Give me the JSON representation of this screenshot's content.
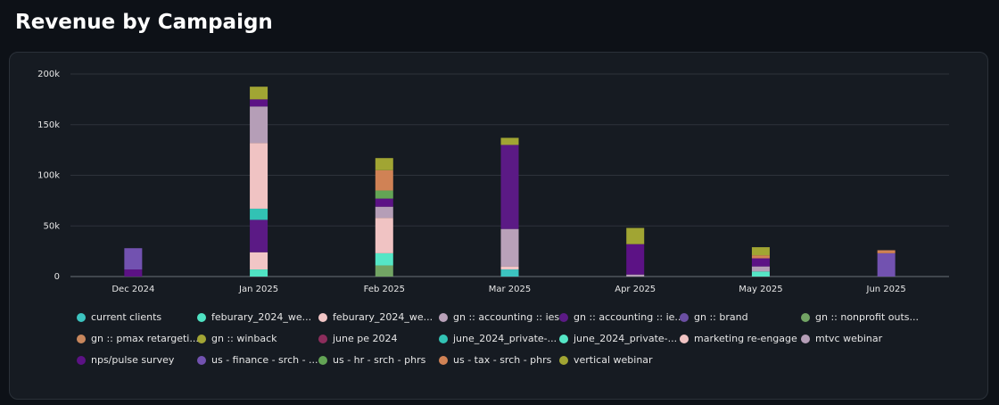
{
  "chart_data": {
    "type": "stacked_bar",
    "title": "Revenue by Campaign",
    "categories": [
      "Dec 2024",
      "Jan 2025",
      "Feb 2025",
      "Mar 2025",
      "Apr 2025",
      "May 2025",
      "Jun 2025"
    ],
    "ylim": [
      0,
      200000
    ],
    "yticks": [
      0,
      {
        "value": 50000,
        "label": "50k"
      },
      {
        "value": 100000,
        "label": "100k"
      },
      {
        "value": 150000,
        "label": "150k"
      },
      {
        "value": 200000,
        "label": "200k"
      }
    ],
    "grid": true,
    "legend": "bottom",
    "series": [
      {
        "name": "current clients",
        "color": "#3cc4c0",
        "values": [
          null,
          null,
          null,
          7000,
          null,
          null,
          null
        ]
      },
      {
        "name": "feburary_2024_we...",
        "color": "#4fe3c3",
        "values": [
          null,
          7000,
          null,
          null,
          null,
          null,
          null
        ]
      },
      {
        "name": "feburary_2024_we...",
        "color": "#f2c6c6",
        "values": [
          null,
          17000,
          null,
          3000,
          null,
          null,
          null
        ]
      },
      {
        "name": "gn :: accounting :: ies",
        "color": "#b9a1b9",
        "values": [
          null,
          null,
          null,
          37000,
          null,
          null,
          null
        ]
      },
      {
        "name": "gn :: accounting :: ie...",
        "color": "#5b1a85",
        "values": [
          null,
          32000,
          null,
          83000,
          null,
          null,
          null
        ]
      },
      {
        "name": "gn :: brand",
        "color": "#6b4fa3",
        "values": [
          null,
          null,
          null,
          null,
          null,
          null,
          null
        ]
      },
      {
        "name": "gn :: nonprofit outs...",
        "color": "#72a464",
        "values": [
          null,
          null,
          11000,
          null,
          null,
          null,
          null
        ]
      },
      {
        "name": "gn :: pmax retargeti...",
        "color": "#c8875d",
        "values": [
          null,
          null,
          null,
          null,
          null,
          null,
          null
        ]
      },
      {
        "name": "gn :: winback",
        "color": "#a3a535",
        "values": [
          null,
          null,
          null,
          null,
          null,
          null,
          null
        ]
      },
      {
        "name": "june pe 2024",
        "color": "#8c2d5c",
        "values": [
          null,
          null,
          null,
          null,
          null,
          null,
          null
        ]
      },
      {
        "name": "june_2024_private-...",
        "color": "#32c2b4",
        "values": [
          null,
          11000,
          null,
          null,
          null,
          null,
          null
        ]
      },
      {
        "name": "june_2024_private-...",
        "color": "#55e6c6",
        "values": [
          null,
          null,
          12000,
          null,
          null,
          5000,
          null
        ]
      },
      {
        "name": "marketing re-engage",
        "color": "#f0c3c3",
        "values": [
          null,
          65000,
          35000,
          null,
          null,
          null,
          null
        ]
      },
      {
        "name": "mtvc webinar",
        "color": "#b59eb7",
        "values": [
          null,
          36000,
          11000,
          null,
          2000,
          5000,
          null
        ]
      },
      {
        "name": "nps/pulse survey",
        "color": "#5c1285",
        "values": [
          7000,
          7000,
          8000,
          null,
          30000,
          8000,
          null
        ]
      },
      {
        "name": "us - finance - srch - ...",
        "color": "#7252b0",
        "values": [
          21000,
          null,
          null,
          null,
          null,
          null,
          23000
        ]
      },
      {
        "name": "us - hr - srch - phrs",
        "color": "#63a455",
        "values": [
          null,
          null,
          8000,
          null,
          null,
          null,
          null
        ]
      },
      {
        "name": "us - tax - srch - phrs",
        "color": "#d08255",
        "values": [
          null,
          null,
          20000,
          null,
          null,
          3000,
          3000
        ]
      },
      {
        "name": "vertical webinar",
        "color": "#a1a533",
        "values": [
          null,
          12500,
          12000,
          7000,
          16000,
          8000,
          null
        ]
      }
    ]
  }
}
